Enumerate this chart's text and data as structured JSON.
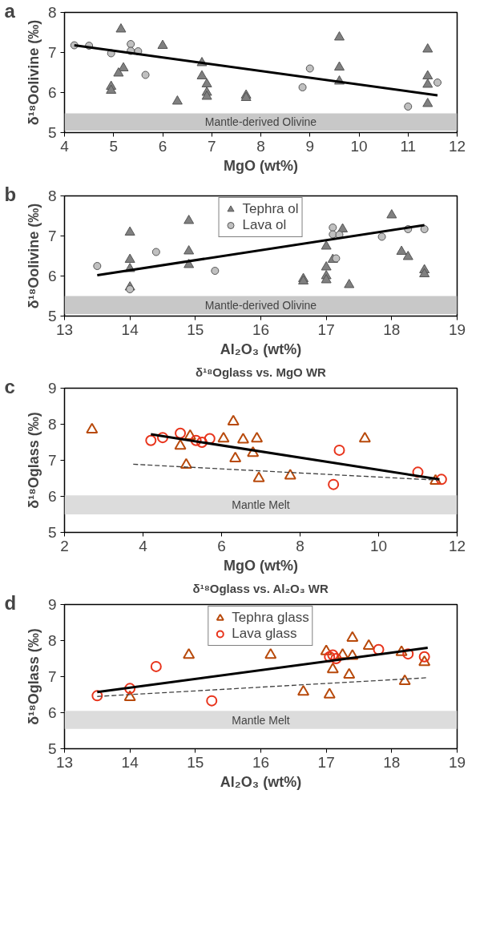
{
  "chart_data": [
    {
      "type": "scatter",
      "xlabel": "MgO (wt%)",
      "ylabel": "δ¹⁸Oolivine (‰)",
      "xlim": [
        4,
        12
      ],
      "ylim": [
        5,
        8
      ],
      "xticks": [
        4,
        5,
        6,
        7,
        8,
        9,
        10,
        11,
        12
      ],
      "yticks": [
        5,
        6,
        7,
        8
      ],
      "grid": false,
      "legend": false,
      "annotations": [
        "a"
      ],
      "bands": [
        {
          "axis": "y",
          "from": 5.05,
          "to": 5.48,
          "label": "Mantle-derived Olivine",
          "color": "#c8c8c8"
        }
      ],
      "series": [
        {
          "type": "scatter",
          "marker": "triangle",
          "color": "#808080",
          "x": [
            5.15,
            5.2,
            5.1,
            4.95,
            4.95,
            6.0,
            6.3,
            6.8,
            6.8,
            6.9,
            6.9,
            6.9,
            7.7,
            7.7,
            9.6,
            9.6,
            9.6,
            11.4,
            11.4,
            11.4,
            11.4
          ],
          "values": [
            7.58,
            6.61,
            6.48,
            6.15,
            6.05,
            7.17,
            5.78,
            6.74,
            6.41,
            6.21,
            6.0,
            5.9,
            5.93,
            5.87,
            7.38,
            6.63,
            6.28,
            7.08,
            6.41,
            6.2,
            5.72
          ]
        },
        {
          "type": "scatter",
          "marker": "circle",
          "color": "#c0c0c0",
          "x": [
            4.2,
            4.5,
            4.95,
            5.35,
            5.35,
            5.5,
            5.65,
            8.85,
            9.0,
            11.0,
            11.6
          ],
          "values": [
            7.18,
            7.17,
            6.98,
            7.21,
            7.04,
            7.03,
            6.44,
            6.13,
            6.6,
            5.65,
            6.25
          ]
        },
        {
          "type": "line",
          "color": "#000000",
          "line_style": "solid",
          "x": [
            4.2,
            11.6
          ],
          "values": [
            7.18,
            5.93
          ]
        }
      ]
    },
    {
      "type": "scatter",
      "xlabel": "Al₂O₃ (wt%)",
      "ylabel": "δ¹⁸Oolivine (‰)",
      "xlim": [
        13,
        19
      ],
      "ylim": [
        5,
        8
      ],
      "xticks": [
        13,
        14,
        15,
        16,
        17,
        18,
        19
      ],
      "yticks": [
        5,
        6,
        7,
        8
      ],
      "grid": false,
      "legend": "top",
      "annotations": [
        "b"
      ],
      "bands": [
        {
          "axis": "y",
          "from": 5.05,
          "to": 5.5,
          "label": "Mantle-derived Olivine",
          "color": "#c8c8c8"
        }
      ],
      "series": [
        {
          "type": "scatter",
          "name": "Tephra ol",
          "marker": "triangle",
          "color": "#808080",
          "x": [
            14.0,
            14.0,
            14.0,
            14.0,
            14.9,
            14.9,
            14.9,
            16.65,
            16.65,
            17.0,
            17.0,
            17.0,
            17.0,
            17.1,
            17.35,
            17.25,
            18.0,
            18.15,
            18.25,
            18.5,
            18.5
          ],
          "values": [
            7.09,
            6.41,
            6.18,
            5.72,
            7.38,
            6.62,
            6.28,
            5.93,
            5.87,
            6.74,
            6.22,
            6.0,
            5.9,
            6.41,
            5.78,
            7.17,
            7.52,
            6.61,
            6.48,
            6.15,
            6.05
          ]
        },
        {
          "type": "scatter",
          "name": "Lava ol",
          "marker": "circle",
          "color": "#c0c0c0",
          "x": [
            13.5,
            14.4,
            15.3,
            14.0,
            17.1,
            17.1,
            17.15,
            17.2,
            17.85,
            18.25,
            18.5
          ],
          "values": [
            6.25,
            6.6,
            6.13,
            5.67,
            7.21,
            7.04,
            6.44,
            7.03,
            6.98,
            7.17,
            7.17
          ]
        },
        {
          "type": "line",
          "color": "#000000",
          "line_style": "solid",
          "x": [
            13.5,
            18.5
          ],
          "values": [
            6.02,
            7.27
          ]
        }
      ]
    },
    {
      "type": "scatter",
      "title": "δ¹⁸Oglass vs. MgO WR",
      "xlabel": "MgO (wt%)",
      "ylabel": "δ¹⁸Oglass (‰)",
      "xlim": [
        2,
        12
      ],
      "ylim": [
        5,
        9
      ],
      "xticks": [
        2,
        4,
        6,
        8,
        10,
        12
      ],
      "yticks": [
        5,
        6,
        7,
        8,
        9
      ],
      "grid": false,
      "legend": false,
      "annotations": [
        "c"
      ],
      "bands": [
        {
          "axis": "y",
          "from": 5.5,
          "to": 6.03,
          "label": "Mantle Melt",
          "color": "#dcdcdc"
        }
      ],
      "series": [
        {
          "type": "scatter",
          "marker": "triangle",
          "color": "#b84a0c",
          "x": [
            2.7,
            4.95,
            5.1,
            5.2,
            6.05,
            6.3,
            6.35,
            6.55,
            6.8,
            6.9,
            6.95,
            7.75,
            9.65,
            11.45
          ],
          "values": [
            7.85,
            7.4,
            6.87,
            7.67,
            7.6,
            8.07,
            7.05,
            7.57,
            7.2,
            7.6,
            6.5,
            6.57,
            7.6,
            6.43
          ]
        },
        {
          "type": "scatter",
          "marker": "circle",
          "color": "#e8341c",
          "x": [
            4.2,
            4.5,
            4.95,
            5.35,
            5.5,
            5.7,
            8.85,
            9.0,
            11.0,
            11.6
          ],
          "values": [
            7.55,
            7.63,
            7.75,
            7.55,
            7.5,
            7.6,
            6.33,
            7.28,
            6.67,
            6.47
          ]
        },
        {
          "type": "line",
          "color": "#000000",
          "line_style": "solid",
          "x": [
            4.2,
            11.55
          ],
          "values": [
            7.72,
            6.47
          ]
        },
        {
          "type": "line",
          "color": "#404040",
          "line_style": "dashed",
          "x": [
            3.75,
            11.5
          ],
          "values": [
            6.89,
            6.45
          ]
        }
      ]
    },
    {
      "type": "scatter",
      "title": "δ¹⁸Oglass vs. Al₂O₃ WR",
      "xlabel": "Al₂O₃ (wt%)",
      "ylabel": "δ¹⁸Oglass (‰)",
      "xlim": [
        13,
        19
      ],
      "ylim": [
        5,
        9
      ],
      "xticks": [
        13,
        14,
        15,
        16,
        17,
        18,
        19
      ],
      "yticks": [
        5,
        6,
        7,
        8,
        9
      ],
      "grid": false,
      "legend": "top",
      "annotations": [
        "d"
      ],
      "bands": [
        {
          "axis": "y",
          "from": 5.55,
          "to": 6.05,
          "label": "Mantle Melt",
          "color": "#dcdcdc"
        }
      ],
      "series": [
        {
          "type": "scatter",
          "name": "Tephra glass",
          "marker": "triangle",
          "color": "#b84a0c",
          "x": [
            14.0,
            14.9,
            16.15,
            16.65,
            17.0,
            17.05,
            17.1,
            17.25,
            17.35,
            17.4,
            17.4,
            17.65,
            18.15,
            18.2,
            18.5
          ],
          "values": [
            6.43,
            7.6,
            7.6,
            6.58,
            7.7,
            6.5,
            7.2,
            7.6,
            7.05,
            7.57,
            8.07,
            7.85,
            7.68,
            6.87,
            7.4
          ]
        },
        {
          "type": "scatter",
          "name": "Lava glass",
          "marker": "circle",
          "color": "#e8341c",
          "x": [
            13.5,
            14.0,
            14.4,
            15.25,
            17.05,
            17.1,
            17.15,
            17.8,
            18.25,
            18.5
          ],
          "values": [
            6.47,
            6.67,
            7.28,
            6.33,
            7.55,
            7.6,
            7.5,
            7.75,
            7.63,
            7.55
          ]
        },
        {
          "type": "line",
          "color": "#000000",
          "line_style": "solid",
          "x": [
            13.5,
            18.55
          ],
          "values": [
            6.57,
            7.8
          ]
        },
        {
          "type": "line",
          "color": "#404040",
          "line_style": "dashed",
          "x": [
            13.5,
            18.55
          ],
          "values": [
            6.45,
            6.97
          ]
        }
      ]
    }
  ]
}
